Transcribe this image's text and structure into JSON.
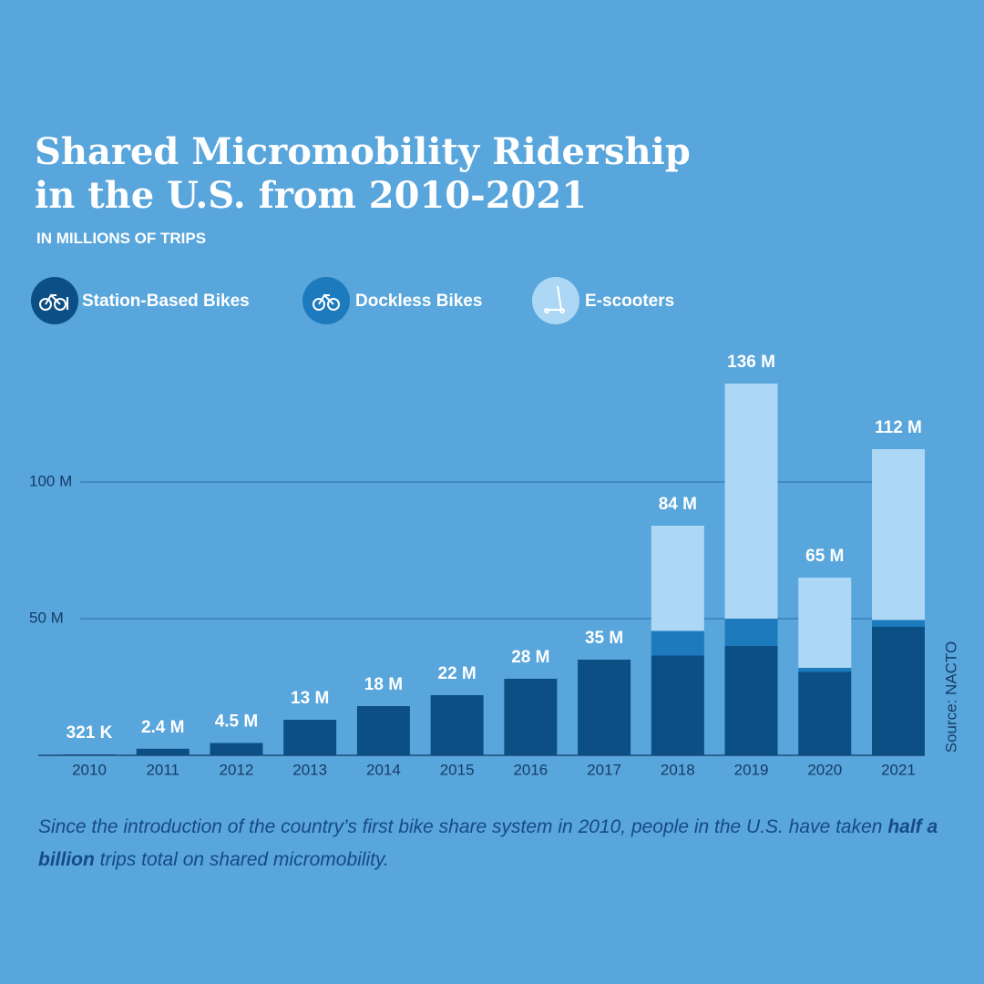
{
  "chart_data": {
    "type": "stacked_bar",
    "title_lines": [
      "Shared Micromobility Ridership",
      "in the U.S. from 2010-2021"
    ],
    "subtitle": "IN MILLIONS OF TRIPS",
    "categories": [
      "2010",
      "2011",
      "2012",
      "2013",
      "2014",
      "2015",
      "2016",
      "2017",
      "2018",
      "2019",
      "2020",
      "2021"
    ],
    "series": [
      {
        "name": "Station-Based Bikes",
        "color": "#0b4f85",
        "values": [
          0.321,
          2.4,
          4.5,
          13,
          18,
          22,
          28,
          35,
          36.5,
          40,
          30.5,
          47
        ]
      },
      {
        "name": "Dockless Bikes",
        "color": "#1d7bbd",
        "values": [
          0,
          0,
          0,
          0,
          0,
          0,
          0,
          0,
          9,
          10,
          1.5,
          2.5
        ]
      },
      {
        "name": "E-scooters",
        "color": "#acd8f5",
        "values": [
          0,
          0,
          0,
          0,
          0,
          0,
          0,
          0,
          38.5,
          86,
          33,
          62.5
        ]
      }
    ],
    "totals": {
      "values": [
        0.321,
        2.4,
        4.5,
        13,
        18,
        22,
        28,
        35,
        84,
        136,
        65,
        112
      ],
      "value_labels": [
        "321 K",
        "2.4 M",
        "4.5 M",
        "13 M",
        "18 M",
        "22 M",
        "28 M",
        "35 M",
        "84 M",
        "136 M",
        "65 M",
        "112 M"
      ]
    },
    "ylim": [
      0,
      150
    ],
    "yticks": [
      {
        "value": 50,
        "label": "50 M"
      },
      {
        "value": 100,
        "label": "100 M"
      }
    ],
    "grid": true,
    "source": "Source: NACTO",
    "footnote": [
      "Since the introduction of the country’s first bike share system in 2010, people in the U.S. have taken ",
      "half a billion",
      " trips total on shared micromobility."
    ]
  }
}
